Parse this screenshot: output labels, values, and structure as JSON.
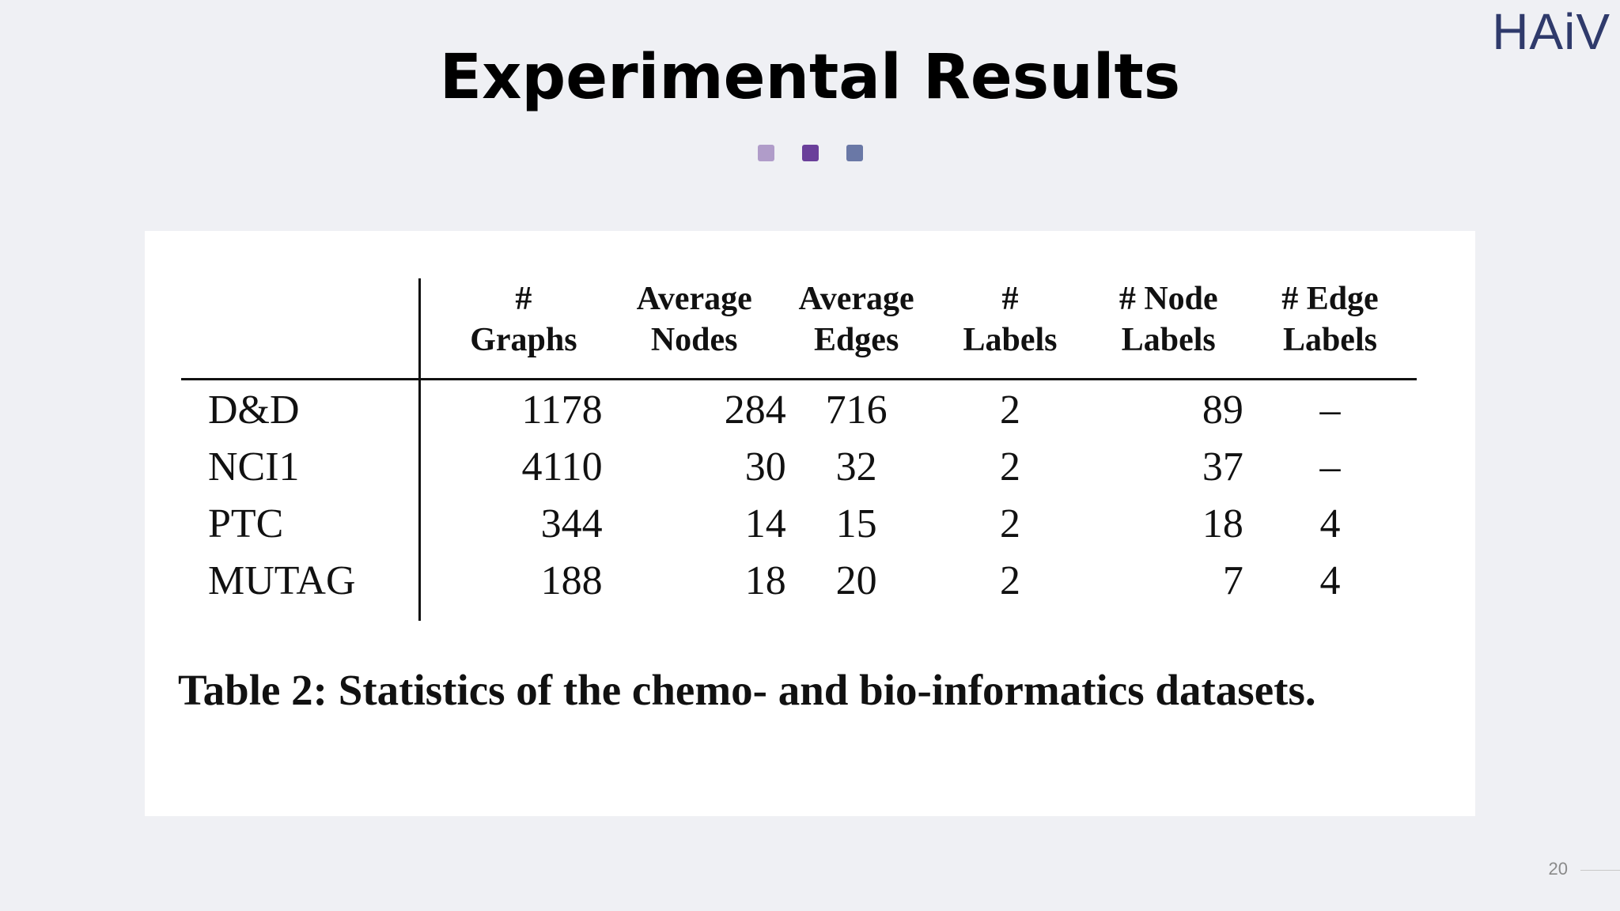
{
  "logo": {
    "text": "HAiV"
  },
  "slide": {
    "title": "Experimental Results",
    "dots": [
      {
        "color": "#b09cc9"
      },
      {
        "color": "#6a3f9a"
      },
      {
        "color": "#6a78a6"
      }
    ],
    "page_number": "20"
  },
  "table": {
    "headers": {
      "name": "",
      "graphs": [
        "#",
        "Graphs"
      ],
      "avg_nodes": [
        "Average",
        "Nodes"
      ],
      "avg_edges": [
        "Average",
        "Edges"
      ],
      "labels": [
        "#",
        "Labels"
      ],
      "node_labels": [
        "# Node",
        "Labels"
      ],
      "edge_labels": [
        "# Edge",
        "Labels"
      ]
    },
    "rows": [
      {
        "name": "D&D",
        "graphs": "1178",
        "avg_nodes": "284",
        "avg_edges": "716",
        "labels": "2",
        "node_labels": "89",
        "edge_labels": "–"
      },
      {
        "name": "NCI1",
        "graphs": "4110",
        "avg_nodes": "30",
        "avg_edges": "32",
        "labels": "2",
        "node_labels": "37",
        "edge_labels": "–"
      },
      {
        "name": "PTC",
        "graphs": "344",
        "avg_nodes": "14",
        "avg_edges": "15",
        "labels": "2",
        "node_labels": "18",
        "edge_labels": "4"
      },
      {
        "name": "MUTAG",
        "graphs": "188",
        "avg_nodes": "18",
        "avg_edges": "20",
        "labels": "2",
        "node_labels": "7",
        "edge_labels": "4"
      }
    ],
    "caption": "Table 2: Statistics of the chemo- and bio-informatics datasets."
  }
}
